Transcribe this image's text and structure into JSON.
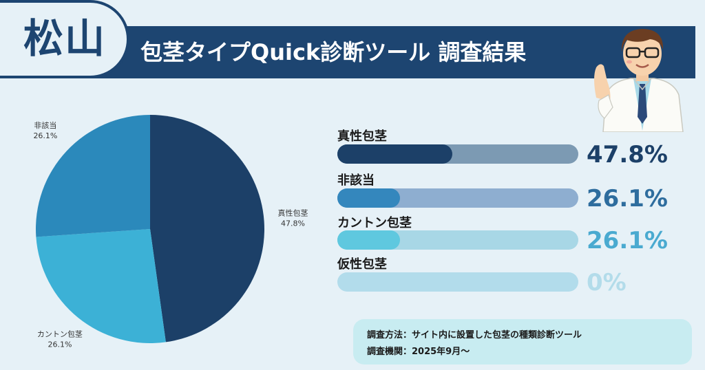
{
  "header": {
    "city": "松山",
    "title": "包茎タイプQuick診断ツール 調査結果"
  },
  "chart_data": [
    {
      "type": "pie",
      "categories": [
        "真性包茎",
        "カントン包茎",
        "非該当"
      ],
      "values": [
        47.8,
        26.1,
        26.1
      ],
      "labels": [
        {
          "name": "真性包茎",
          "value": "47.8%"
        },
        {
          "name": "カントン包茎",
          "value": "26.1%"
        },
        {
          "name": "非該当",
          "value": "26.1%"
        }
      ],
      "colors": [
        "#1c4068",
        "#3cb1d6",
        "#2b89bb"
      ]
    },
    {
      "type": "bar",
      "categories": [
        "真性包茎",
        "非該当",
        "カントン包茎",
        "仮性包茎"
      ],
      "values": [
        47.8,
        26.1,
        26.1,
        0
      ],
      "value_labels": [
        "47.8%",
        "26.1%",
        "26.1%",
        "0%"
      ],
      "fill_colors": [
        "#1c4068",
        "#3487bd",
        "#5fc8df",
        "#b2dceb"
      ],
      "track_colors": [
        "#7c9ab3",
        "#8eaed0",
        "#a8d7e6",
        "#b2dceb"
      ],
      "text_colors": [
        "#1c4068",
        "#2e6d9e",
        "#4aaad0",
        "#b3dcea"
      ],
      "xlim": [
        0,
        100
      ]
    }
  ],
  "method": {
    "line1": "調査方法：サイト内に設置した包茎の種類診断ツール",
    "line2": "調査機関：2025年9月〜"
  }
}
